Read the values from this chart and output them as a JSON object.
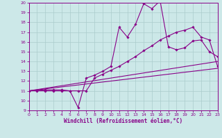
{
  "xlabel": "Windchill (Refroidissement éolien,°C)",
  "bg_color": "#cce8e8",
  "grid_color": "#aacccc",
  "line_color": "#880088",
  "xlim": [
    0,
    23
  ],
  "ylim": [
    9,
    20
  ],
  "xticks": [
    0,
    1,
    2,
    3,
    4,
    5,
    6,
    7,
    8,
    9,
    10,
    11,
    12,
    13,
    14,
    15,
    16,
    17,
    18,
    19,
    20,
    21,
    22,
    23
  ],
  "yticks": [
    9,
    10,
    11,
    12,
    13,
    14,
    15,
    16,
    17,
    18,
    19,
    20
  ],
  "curve1_x": [
    0,
    1,
    2,
    3,
    4,
    5,
    6,
    7,
    8,
    9,
    10,
    11,
    12,
    13,
    14,
    15,
    16,
    17,
    18,
    19,
    20,
    21,
    22,
    23
  ],
  "curve1_y": [
    11,
    11,
    11,
    11,
    11,
    11,
    9.3,
    12.3,
    12.6,
    13.0,
    13.5,
    17.5,
    16.5,
    17.8,
    19.9,
    19.4,
    20.2,
    15.5,
    15.2,
    15.4,
    16.1,
    16.2,
    15.0,
    14.5
  ],
  "curve2_x": [
    0,
    2,
    3,
    4,
    5,
    6,
    7,
    8,
    9,
    10,
    11,
    12,
    13,
    14,
    15,
    16,
    17,
    18,
    19,
    20,
    21,
    22,
    23
  ],
  "curve2_y": [
    11,
    11.1,
    11.1,
    11.1,
    11.0,
    11.0,
    11.0,
    12.3,
    12.7,
    13.1,
    13.5,
    14.0,
    14.5,
    15.1,
    15.6,
    16.2,
    16.6,
    17.0,
    17.2,
    17.5,
    16.5,
    16.2,
    13.5
  ],
  "line3_x": [
    0,
    23
  ],
  "line3_y": [
    11,
    14.0
  ],
  "line4_x": [
    0,
    23
  ],
  "line4_y": [
    11,
    13.3
  ]
}
